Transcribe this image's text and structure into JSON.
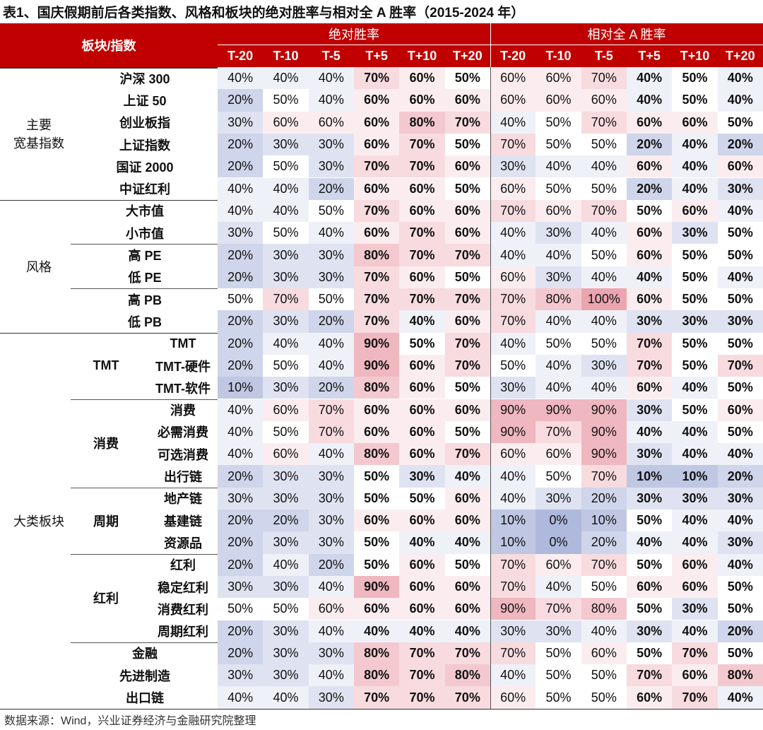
{
  "title": "表1、国庆假期前后各类指数、风格和板块的绝对胜率与相对全 A 胜率（2015-2024 年）",
  "header": {
    "corner": "板块/指数",
    "abs": "绝对胜率",
    "rel": "相对全 A 胜率",
    "columns": [
      "T-20",
      "T-10",
      "T-5",
      "T+5",
      "T+10",
      "T+20",
      "T-20",
      "T-10",
      "T-5",
      "T+5",
      "T+10",
      "T+20"
    ]
  },
  "groups": [
    {
      "label": [
        "主要",
        "宽基指数"
      ],
      "subgroups": [
        {
          "rows": [
            {
              "name": "沪深 300",
              "cells": [
                "40%",
                "40%",
                "40%",
                "70%",
                "60%",
                "50%",
                "60%",
                "60%",
                "70%",
                "40%",
                "50%",
                "40%"
              ]
            },
            {
              "name": "上证 50",
              "cells": [
                "20%",
                "50%",
                "40%",
                "60%",
                "60%",
                "60%",
                "60%",
                "60%",
                "60%",
                "40%",
                "50%",
                "40%"
              ]
            },
            {
              "name": "创业板指",
              "cells": [
                "30%",
                "60%",
                "60%",
                "60%",
                "80%",
                "70%",
                "40%",
                "50%",
                "70%",
                "60%",
                "60%",
                "50%"
              ]
            },
            {
              "name": "上证指数",
              "cells": [
                "20%",
                "30%",
                "30%",
                "60%",
                "70%",
                "50%",
                "70%",
                "50%",
                "50%",
                "20%",
                "40%",
                "20%"
              ]
            },
            {
              "name": "国证 2000",
              "cells": [
                "20%",
                "50%",
                "30%",
                "70%",
                "70%",
                "60%",
                "30%",
                "40%",
                "40%",
                "60%",
                "40%",
                "60%"
              ]
            },
            {
              "name": "中证红利",
              "cells": [
                "40%",
                "40%",
                "20%",
                "60%",
                "60%",
                "50%",
                "60%",
                "50%",
                "50%",
                "20%",
                "40%",
                "30%"
              ]
            }
          ]
        }
      ]
    },
    {
      "label": [
        "风格"
      ],
      "subgroups": [
        {
          "rows": [
            {
              "name": "大市值",
              "cells": [
                "40%",
                "40%",
                "50%",
                "70%",
                "60%",
                "60%",
                "70%",
                "60%",
                "70%",
                "50%",
                "60%",
                "40%"
              ]
            },
            {
              "name": "小市值",
              "cells": [
                "30%",
                "50%",
                "40%",
                "60%",
                "70%",
                "60%",
                "40%",
                "30%",
                "40%",
                "60%",
                "30%",
                "50%"
              ]
            }
          ]
        },
        {
          "rows": [
            {
              "name": "高 PE",
              "cells": [
                "20%",
                "30%",
                "30%",
                "80%",
                "70%",
                "70%",
                "40%",
                "40%",
                "50%",
                "60%",
                "50%",
                "50%"
              ]
            },
            {
              "name": "低 PE",
              "cells": [
                "20%",
                "30%",
                "30%",
                "70%",
                "60%",
                "50%",
                "60%",
                "30%",
                "40%",
                "40%",
                "50%",
                "40%"
              ]
            }
          ]
        },
        {
          "rows": [
            {
              "name": "高 PB",
              "cells": [
                "50%",
                "70%",
                "50%",
                "70%",
                "70%",
                "70%",
                "70%",
                "80%",
                "100%",
                "60%",
                "50%",
                "50%"
              ]
            },
            {
              "name": "低 PB",
              "cells": [
                "20%",
                "30%",
                "20%",
                "70%",
                "40%",
                "60%",
                "70%",
                "40%",
                "40%",
                "30%",
                "30%",
                "30%"
              ]
            }
          ]
        }
      ]
    },
    {
      "label": [
        "大类板块"
      ],
      "subgroups": [
        {
          "label": "TMT",
          "rows": [
            {
              "name": "TMT",
              "cells": [
                "20%",
                "40%",
                "40%",
                "90%",
                "50%",
                "70%",
                "40%",
                "50%",
                "50%",
                "70%",
                "50%",
                "50%"
              ]
            },
            {
              "name": "TMT-硬件",
              "cells": [
                "20%",
                "50%",
                "40%",
                "90%",
                "60%",
                "70%",
                "50%",
                "40%",
                "30%",
                "70%",
                "50%",
                "70%"
              ]
            },
            {
              "name": "TMT-软件",
              "cells": [
                "10%",
                "30%",
                "20%",
                "80%",
                "60%",
                "50%",
                "30%",
                "40%",
                "40%",
                "60%",
                "40%",
                "50%"
              ]
            }
          ]
        },
        {
          "label": "消费",
          "rows": [
            {
              "name": "消费",
              "cells": [
                "40%",
                "60%",
                "70%",
                "60%",
                "60%",
                "60%",
                "90%",
                "90%",
                "90%",
                "30%",
                "50%",
                "60%"
              ]
            },
            {
              "name": "必需消费",
              "cells": [
                "40%",
                "50%",
                "70%",
                "60%",
                "60%",
                "50%",
                "90%",
                "70%",
                "90%",
                "40%",
                "40%",
                "50%"
              ]
            },
            {
              "name": "可选消费",
              "cells": [
                "40%",
                "60%",
                "40%",
                "80%",
                "60%",
                "70%",
                "60%",
                "60%",
                "90%",
                "30%",
                "40%",
                "40%"
              ]
            },
            {
              "name": "出行链",
              "cells": [
                "20%",
                "30%",
                "30%",
                "50%",
                "30%",
                "40%",
                "40%",
                "50%",
                "70%",
                "10%",
                "10%",
                "20%"
              ]
            }
          ]
        },
        {
          "label": "周期",
          "rows": [
            {
              "name": "地产链",
              "cells": [
                "30%",
                "30%",
                "30%",
                "50%",
                "50%",
                "60%",
                "40%",
                "30%",
                "20%",
                "30%",
                "30%",
                "30%"
              ]
            },
            {
              "name": "基建链",
              "cells": [
                "20%",
                "20%",
                "30%",
                "60%",
                "60%",
                "60%",
                "10%",
                "0%",
                "10%",
                "50%",
                "40%",
                "40%"
              ]
            },
            {
              "name": "资源品",
              "cells": [
                "20%",
                "30%",
                "30%",
                "50%",
                "40%",
                "40%",
                "10%",
                "0%",
                "20%",
                "40%",
                "40%",
                "30%"
              ]
            }
          ]
        },
        {
          "label": "红利",
          "rows": [
            {
              "name": "红利",
              "cells": [
                "20%",
                "40%",
                "20%",
                "50%",
                "60%",
                "50%",
                "70%",
                "60%",
                "70%",
                "50%",
                "60%",
                "40%"
              ]
            },
            {
              "name": "稳定红利",
              "cells": [
                "30%",
                "30%",
                "40%",
                "90%",
                "60%",
                "60%",
                "70%",
                "40%",
                "50%",
                "60%",
                "60%",
                "50%"
              ]
            },
            {
              "name": "消费红利",
              "cells": [
                "50%",
                "50%",
                "60%",
                "60%",
                "60%",
                "60%",
                "90%",
                "70%",
                "80%",
                "50%",
                "30%",
                "50%"
              ]
            },
            {
              "name": "周期红利",
              "cells": [
                "20%",
                "30%",
                "40%",
                "40%",
                "40%",
                "40%",
                "30%",
                "30%",
                "40%",
                "30%",
                "40%",
                "20%"
              ]
            }
          ]
        },
        {
          "rows": [
            {
              "name": "金融",
              "cells": [
                "20%",
                "30%",
                "30%",
                "80%",
                "70%",
                "70%",
                "70%",
                "50%",
                "60%",
                "50%",
                "70%",
                "50%"
              ]
            },
            {
              "name": "先进制造",
              "cells": [
                "30%",
                "30%",
                "40%",
                "80%",
                "70%",
                "80%",
                "40%",
                "50%",
                "50%",
                "70%",
                "60%",
                "80%"
              ]
            },
            {
              "name": "出口链",
              "cells": [
                "40%",
                "40%",
                "30%",
                "70%",
                "70%",
                "70%",
                "60%",
                "50%",
                "50%",
                "60%",
                "70%",
                "40%"
              ]
            }
          ]
        }
      ]
    }
  ],
  "source": "数据来源：Wind，兴业证券经济与金融研究院整理"
}
